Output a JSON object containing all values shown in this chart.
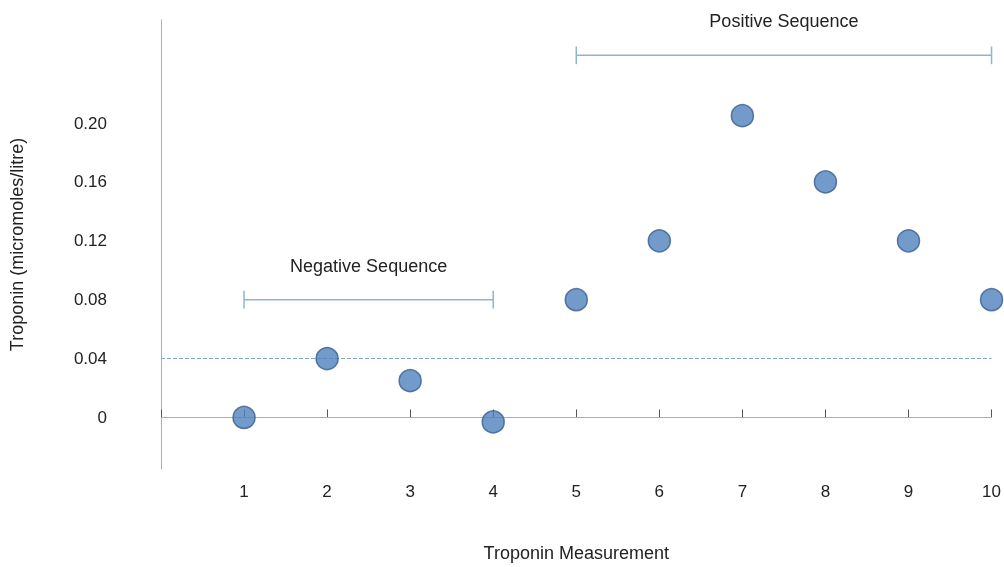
{
  "chart_data": {
    "type": "scatter",
    "xlabel": "Troponin Measurement",
    "ylabel": "Troponin (micromoles/litre)",
    "x": [
      1,
      2,
      3,
      4,
      5,
      6,
      7,
      8,
      9,
      10
    ],
    "series": [
      {
        "color": "#4f81bd",
        "values": [
          0,
          0.04,
          0.025,
          -0.003,
          0.08,
          0.12,
          0.205,
          0.16,
          0.12,
          0.08
        ]
      },
      {
        "type": "line",
        "marker": "none",
        "color": "#8eb4d8",
        "x": [
          1,
          4
        ],
        "values": [
          0.08,
          0.08
        ],
        "errors": [
          0.006,
          0.006
        ]
      },
      {
        "type": "line",
        "marker": "none",
        "color": "#8eb4d8",
        "x": [
          5,
          10
        ],
        "values": [
          0.246,
          0.246
        ],
        "errors": [
          0.006,
          0.006
        ]
      }
    ],
    "marker": "circle",
    "grid": false,
    "xlim": [
      0,
      10
    ],
    "xticks": [
      {
        "value": 0,
        "label": null
      },
      1,
      2,
      3,
      4,
      5,
      6,
      7,
      8,
      9,
      10
    ],
    "ylim": [
      -0.035,
      0.27
    ],
    "yticks": [
      {
        "value": 0,
        "label": "0"
      },
      {
        "value": 0.04,
        "label": "0.04"
      },
      {
        "value": 0.08,
        "label": "0.08"
      },
      {
        "value": 0.12,
        "label": "0.12"
      },
      {
        "value": 0.16,
        "label": "0.16"
      },
      {
        "value": 0.2,
        "label": "0.20"
      }
    ],
    "ref_lines": [
      {
        "axis": "y",
        "value": 0.04,
        "line_style": "dashed",
        "color": "#7fa7cf"
      },
      {
        "axis": "y",
        "value": 0,
        "line_style": "solid",
        "color": "#8eb4d8"
      }
    ],
    "annotations": [
      "Negative Sequence",
      "Positive Sequence"
    ]
  }
}
